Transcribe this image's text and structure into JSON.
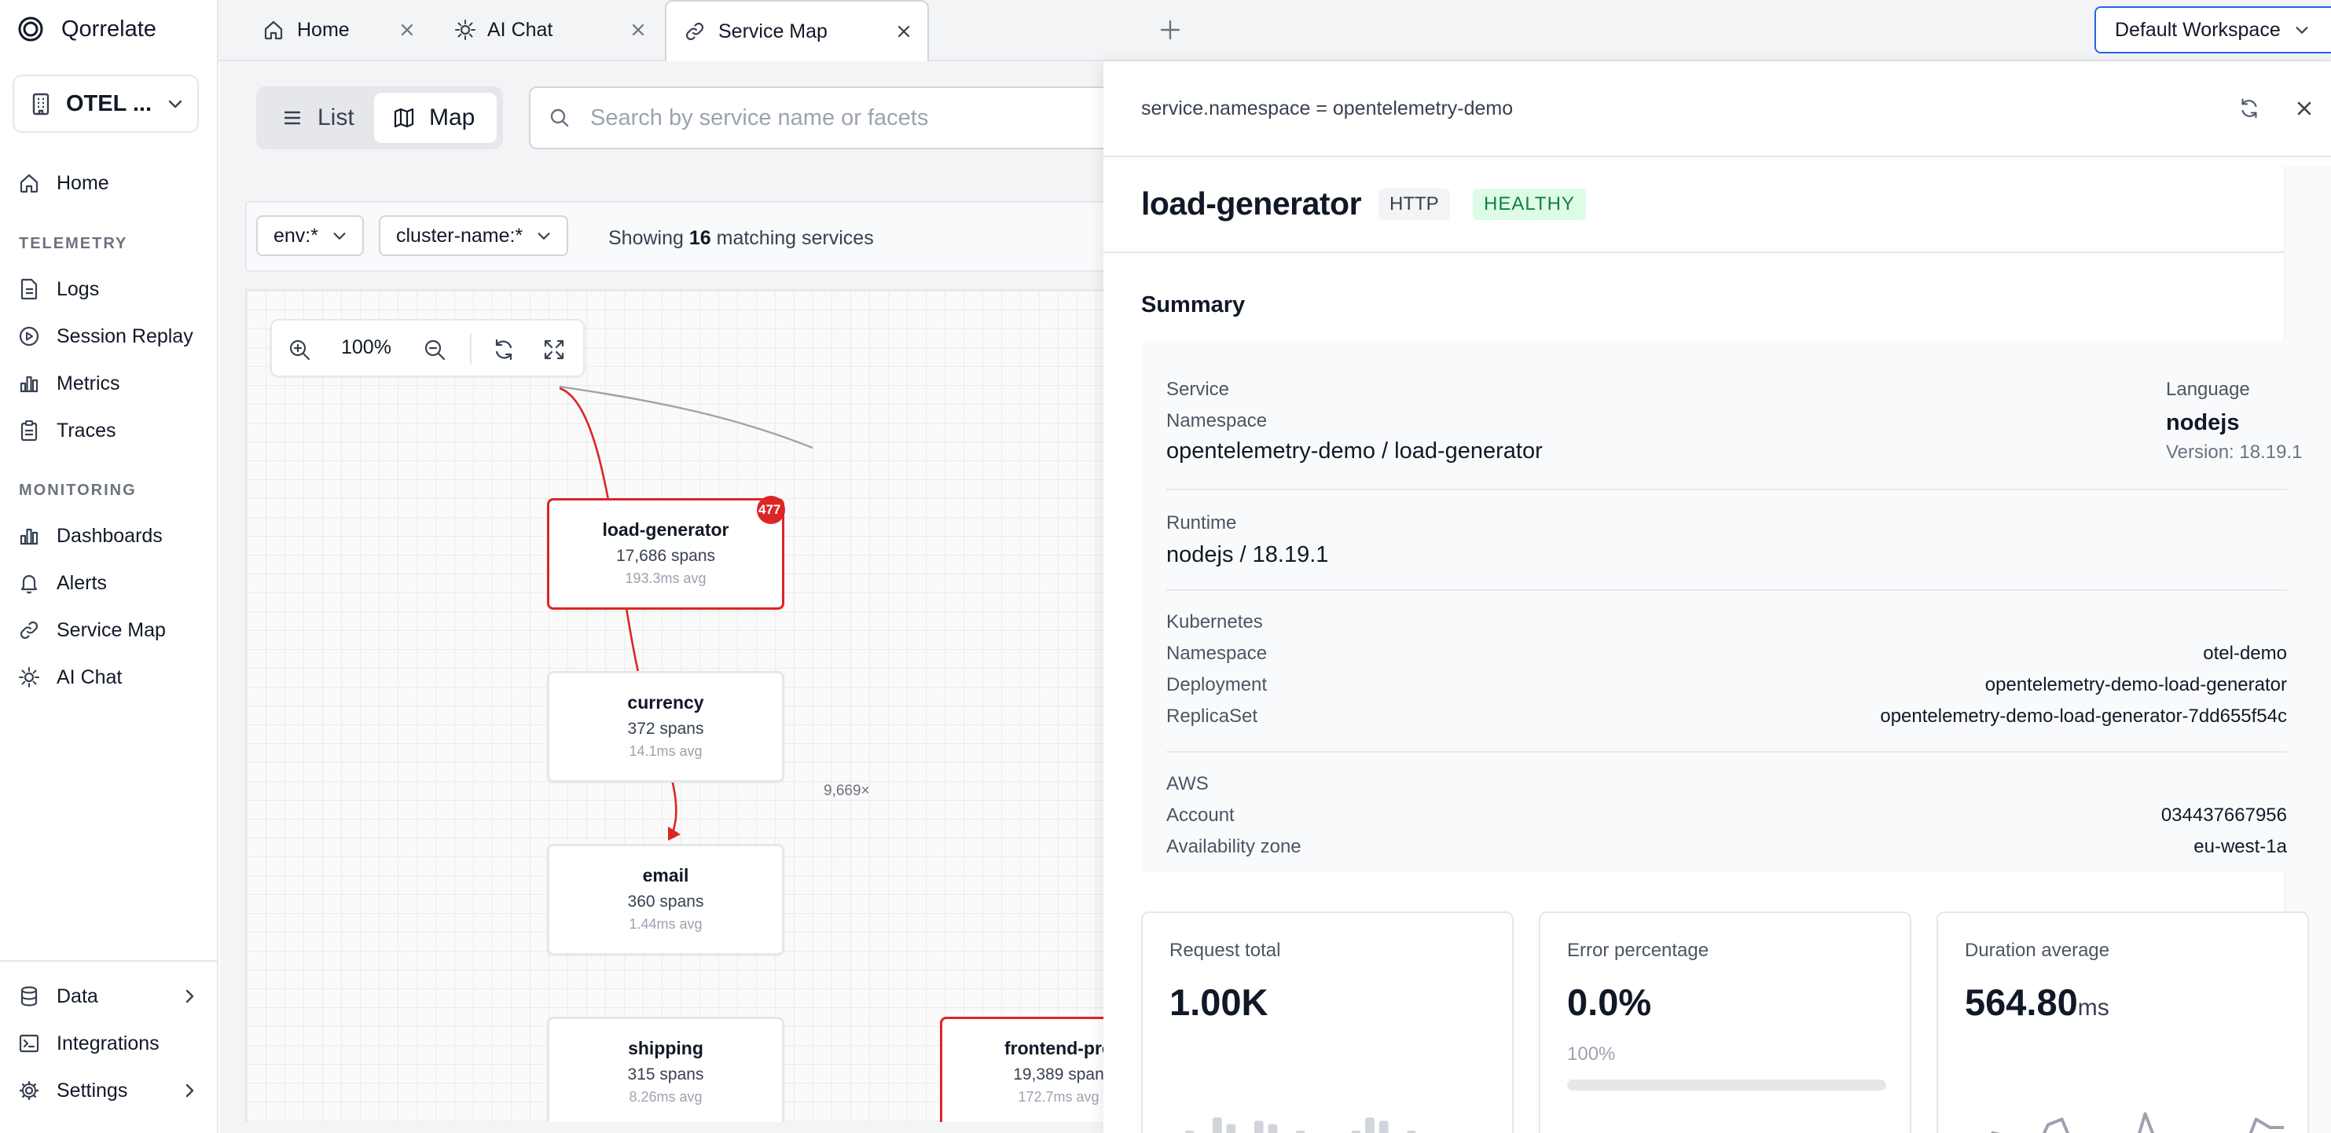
{
  "app": {
    "name": "Qorrelate"
  },
  "sidebar": {
    "workspace_label": "OTEL ...",
    "home": "Home",
    "sections": {
      "telemetry": "TELEMETRY",
      "monitoring": "MONITORING"
    },
    "telemetry_items": [
      "Logs",
      "Session Replay",
      "Metrics",
      "Traces"
    ],
    "monitoring_items": [
      "Dashboards",
      "Alerts",
      "Service Map",
      "AI Chat"
    ],
    "bottom_items": [
      "Data",
      "Integrations",
      "Settings"
    ]
  },
  "tabs": [
    {
      "label": "Home",
      "active": false
    },
    {
      "label": "AI Chat",
      "active": false
    },
    {
      "label": "Service Map",
      "active": true
    }
  ],
  "header": {
    "workspace_select": "Default Workspace"
  },
  "main": {
    "view_list": "List",
    "view_map": "Map",
    "search_placeholder": "Search by service name or facets",
    "filters": [
      "env:*",
      "cluster-name:*"
    ],
    "showing_prefix": "Showing",
    "showing_count": "16",
    "showing_suffix": "matching services",
    "zoom_level": "100%"
  },
  "map": {
    "nodes": [
      {
        "name": "load-generator",
        "spans": "17,686 spans",
        "avg": "193.3ms avg",
        "error": true,
        "badge": "477"
      },
      {
        "name": "currency",
        "spans": "372 spans",
        "avg": "14.1ms avg",
        "error": false
      },
      {
        "name": "email",
        "spans": "360 spans",
        "avg": "1.44ms avg",
        "error": false
      },
      {
        "name": "shipping",
        "spans": "315 spans",
        "avg": "8.26ms avg",
        "error": false
      },
      {
        "name": "frontend-pro",
        "spans": "19,389 span",
        "avg": "172.7ms avg",
        "error": true
      }
    ],
    "edge_label": "9,669×",
    "colors": {
      "error_edge": "#dc2626",
      "normal_edge": "#9ca3af"
    }
  },
  "panel": {
    "namespace_filter": "service.namespace = opentelemetry-demo",
    "service_name": "load-generator",
    "protocol_tag": "HTTP",
    "health_tag": "HEALTHY",
    "summary_heading": "Summary",
    "service": {
      "label": "Service",
      "namespace_label": "Namespace",
      "value": "opentelemetry-demo / load-generator",
      "language_label": "Language",
      "language": "nodejs",
      "version": "Version: 18.19.1"
    },
    "runtime": {
      "label": "Runtime",
      "value": "nodejs / 18.19.1"
    },
    "kubernetes": {
      "label": "Kubernetes",
      "rows": [
        {
          "k": "Namespace",
          "v": "otel-demo"
        },
        {
          "k": "Deployment",
          "v": "opentelemetry-demo-load-generator"
        },
        {
          "k": "ReplicaSet",
          "v": "opentelemetry-demo-load-generator-7dd655f54c"
        }
      ]
    },
    "aws": {
      "label": "AWS",
      "rows": [
        {
          "k": "Account",
          "v": "034437667956"
        },
        {
          "k": "Availability zone",
          "v": "eu-west-1a"
        }
      ]
    },
    "metrics": {
      "request_total": {
        "label": "Request total",
        "value": "1.00K"
      },
      "error_percentage": {
        "label": "Error percentage",
        "value": "0.0%",
        "sub": "100%"
      },
      "duration_average": {
        "label": "Duration average",
        "value": "564.80",
        "unit": "ms"
      }
    }
  },
  "sparklines": {
    "request_bars": [
      0.45,
      0.75,
      0.35,
      0.95,
      0.85,
      0.4,
      0.9,
      0.85,
      0.3,
      0.75,
      0.65,
      0.7,
      0.35,
      0.75,
      0.95,
      0.9,
      0.65,
      0.75,
      0.45,
      0.35,
      0.25,
      0.35,
      0.3
    ],
    "duration_line": [
      0.55,
      0.15,
      0.6,
      0.55,
      0.5,
      0.2,
      0.75,
      0.85,
      0.25,
      0.3,
      0.3,
      0.15,
      0.1,
      0.95,
      0.3,
      0.35,
      0.25,
      0.4,
      0.25,
      0.3,
      0.2,
      0.85,
      0.7,
      0.7
    ]
  }
}
